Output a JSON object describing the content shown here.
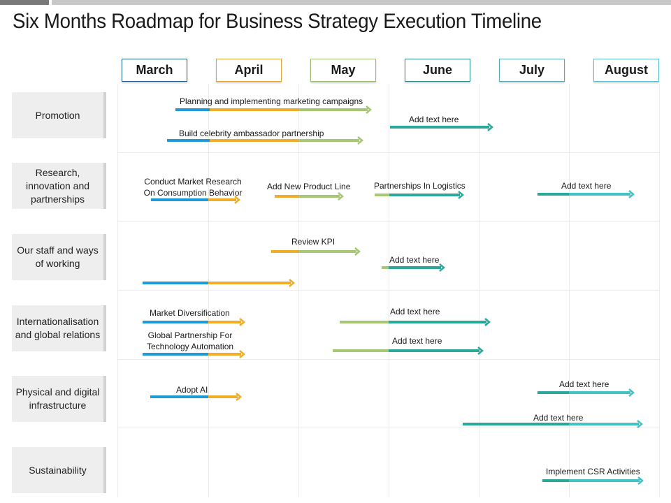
{
  "title": "Six Months Roadmap for Business Strategy Execution Timeline",
  "colors": {
    "blue": "#1f9ad6",
    "orange": "#f0ad2a",
    "green": "#a6c774",
    "teal": "#2aa89a",
    "cyan": "#43c2c6",
    "topbar_dark": "#7a7a7a",
    "topbar_light": "#c8c8c8"
  },
  "months": [
    "March",
    "April",
    "May",
    "June",
    "July",
    "August"
  ],
  "rows": [
    {
      "label": "Promotion"
    },
    {
      "label": "Research, innovation and partnerships"
    },
    {
      "label": "Our staff and ways of working"
    },
    {
      "label": "Internationalisation and global relations"
    },
    {
      "label": "Physical and digital infrastructure"
    },
    {
      "label": "Sustainability"
    }
  ],
  "tasks": [
    {
      "label": "Planning and implementing marketing campaigns",
      "row": 0
    },
    {
      "label": "Add text here",
      "row": 0
    },
    {
      "label": "Build celebrity ambassador partnership",
      "row": 0
    },
    {
      "label": "Conduct Market Research On Consumption Behavior",
      "row": 1
    },
    {
      "label": "Add New Product Line",
      "row": 1
    },
    {
      "label": "Partnerships In Logistics",
      "row": 1
    },
    {
      "label": "Add text here",
      "row": 1
    },
    {
      "label": "Review KPI",
      "row": 2
    },
    {
      "label": "Add text here",
      "row": 2
    },
    {
      "label": "",
      "row": 2
    },
    {
      "label": "Market Diversification",
      "row": 3
    },
    {
      "label": "Add text here",
      "row": 3
    },
    {
      "label": "Global Partnership For Technology Automation",
      "row": 3
    },
    {
      "label": "Add text here",
      "row": 3
    },
    {
      "label": "Adopt AI",
      "row": 4
    },
    {
      "label": "Add text here",
      "row": 4
    },
    {
      "label": "Add text here",
      "row": 4
    },
    {
      "label": "Implement CSR Activities",
      "row": 5
    }
  ]
}
